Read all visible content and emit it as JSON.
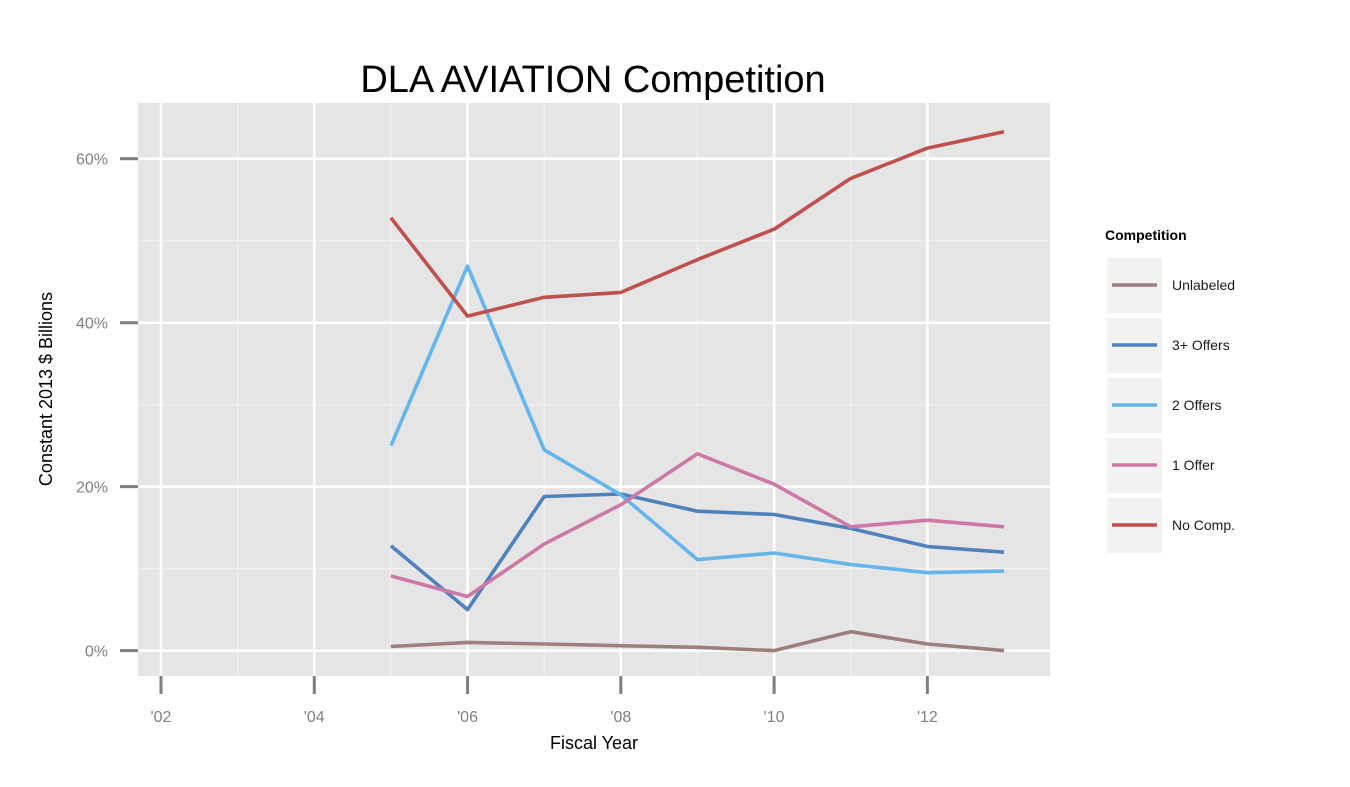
{
  "chart_data": {
    "type": "line",
    "title": "DLA AVIATION Competition",
    "xlabel": "Fiscal Year",
    "ylabel": "Constant 2013 $ Billions",
    "xlim": [
      2001.7,
      2013.6
    ],
    "ylim": [
      -0.031,
      0.668
    ],
    "x_ticks": [
      2002,
      2004,
      2006,
      2008,
      2010,
      2012
    ],
    "x_tick_labels": [
      "'02",
      "'04",
      "'06",
      "'08",
      "'10",
      "'12"
    ],
    "y_ticks": [
      0,
      0.2,
      0.4,
      0.6
    ],
    "y_tick_labels": [
      "0%",
      "20%",
      "40%",
      "60%"
    ],
    "grid": true,
    "legend": {
      "title": "Competition",
      "position": "right"
    },
    "x": [
      2005,
      2006,
      2007,
      2008,
      2009,
      2010,
      2011,
      2012,
      2013
    ],
    "series": [
      {
        "name": "Unlabeled",
        "color": "#9c7e7e",
        "values": [
          0.005,
          0.01,
          0.008,
          0.006,
          0.004,
          0.0,
          0.023,
          0.008,
          0.0
        ]
      },
      {
        "name": "3+ Offers",
        "color": "#4f81bd",
        "values": [
          0.128,
          0.05,
          0.188,
          0.191,
          0.17,
          0.166,
          0.149,
          0.127,
          0.12
        ]
      },
      {
        "name": "2 Offers",
        "color": "#64b5ec",
        "values": [
          0.25,
          0.469,
          0.245,
          0.19,
          0.111,
          0.119,
          0.105,
          0.095,
          0.097
        ]
      },
      {
        "name": "1 Offer",
        "color": "#cc79a7",
        "values": [
          0.091,
          0.066,
          0.13,
          0.178,
          0.24,
          0.203,
          0.151,
          0.159,
          0.151
        ]
      },
      {
        "name": "No Comp.",
        "color": "#c0504d",
        "values": [
          0.528,
          0.408,
          0.431,
          0.437,
          0.477,
          0.514,
          0.576,
          0.613,
          0.633
        ]
      }
    ]
  }
}
